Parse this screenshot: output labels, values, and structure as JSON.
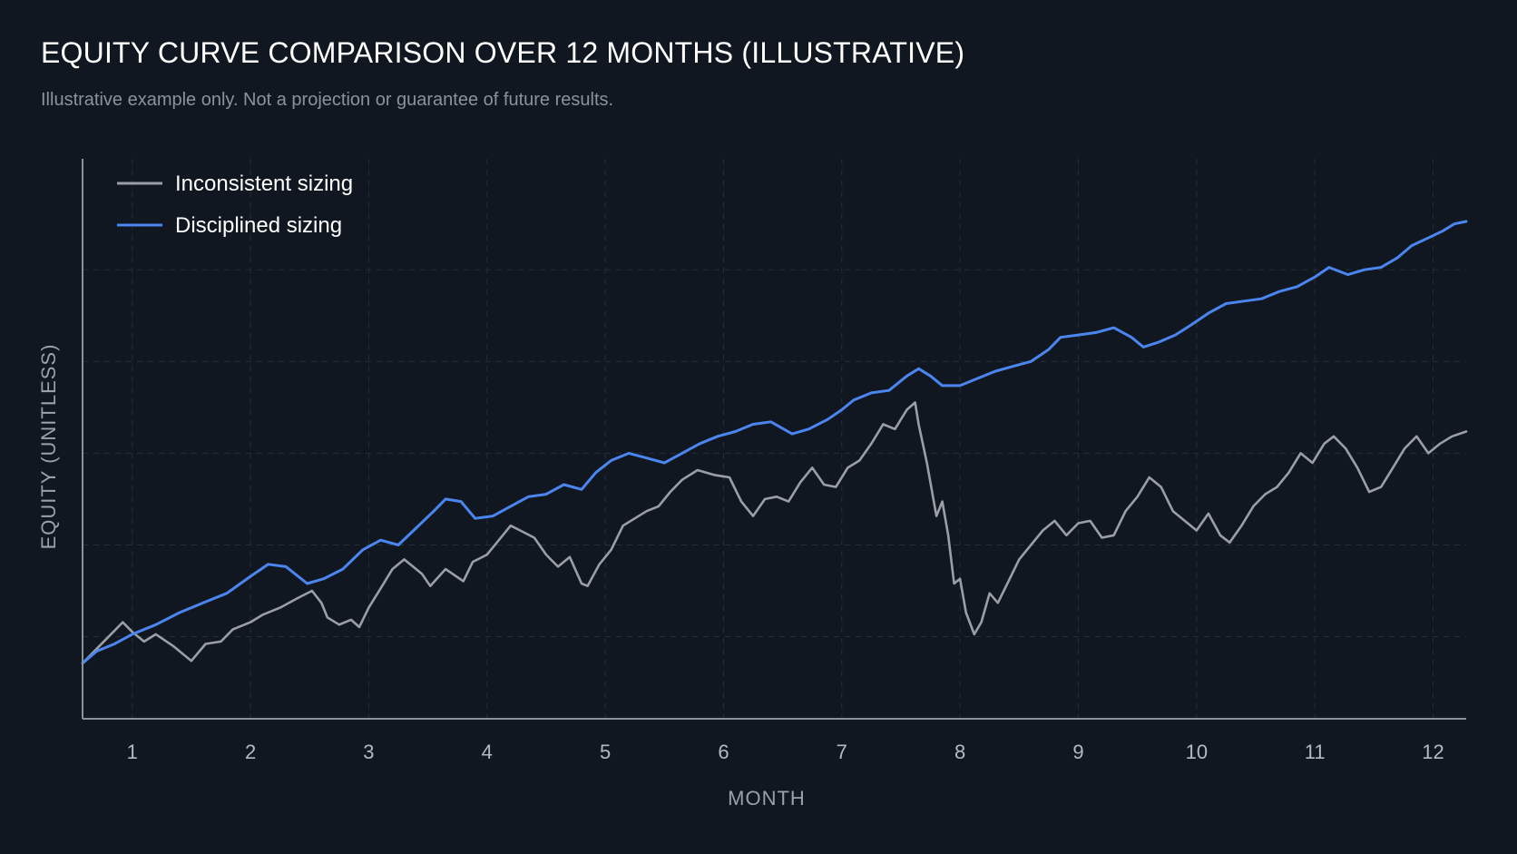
{
  "title": "EQUITY CURVE COMPARISON OVER 12 MONTHS (ILLUSTRATIVE)",
  "subtitle": "Illustrative example only. Not a projection or guarantee of future results.",
  "chart_data": {
    "type": "line",
    "xlabel": "MONTH",
    "ylabel": "EQUITY (UNITLESS)",
    "xticks": [
      1,
      2,
      3,
      4,
      5,
      6,
      7,
      8,
      9,
      10,
      11,
      12
    ],
    "xlim": [
      0.58,
      12.28
    ],
    "ylim": [
      0,
      100
    ],
    "grid": true,
    "legend_position": "top-left",
    "colors": {
      "background": "#111720",
      "grid": "#262d38",
      "axis": "#8a929c"
    },
    "series": [
      {
        "name": "Inconsistent sizing",
        "color": "#9a9fa6",
        "points": [
          [
            0.58,
            11.5
          ],
          [
            0.72,
            15
          ],
          [
            0.8,
            17
          ],
          [
            0.92,
            20
          ],
          [
            1.0,
            18
          ],
          [
            1.1,
            16
          ],
          [
            1.2,
            17.5
          ],
          [
            1.35,
            15
          ],
          [
            1.5,
            12
          ],
          [
            1.62,
            15.5
          ],
          [
            1.75,
            16
          ],
          [
            1.85,
            18.5
          ],
          [
            2.0,
            20
          ],
          [
            2.1,
            21.5
          ],
          [
            2.25,
            23
          ],
          [
            2.4,
            25
          ],
          [
            2.52,
            26.5
          ],
          [
            2.6,
            24
          ],
          [
            2.65,
            21
          ],
          [
            2.75,
            19.5
          ],
          [
            2.85,
            20.5
          ],
          [
            2.92,
            19
          ],
          [
            3.0,
            23
          ],
          [
            3.1,
            27
          ],
          [
            3.2,
            31
          ],
          [
            3.3,
            33
          ],
          [
            3.45,
            30
          ],
          [
            3.52,
            27.5
          ],
          [
            3.65,
            31
          ],
          [
            3.8,
            28.5
          ],
          [
            3.88,
            32.5
          ],
          [
            4.0,
            34
          ],
          [
            4.1,
            37
          ],
          [
            4.2,
            40
          ],
          [
            4.28,
            39
          ],
          [
            4.4,
            37.5
          ],
          [
            4.5,
            34
          ],
          [
            4.6,
            31.5
          ],
          [
            4.7,
            33.5
          ],
          [
            4.8,
            28
          ],
          [
            4.85,
            27.5
          ],
          [
            4.95,
            32
          ],
          [
            5.05,
            35
          ],
          [
            5.15,
            40
          ],
          [
            5.25,
            41.5
          ],
          [
            5.35,
            43
          ],
          [
            5.45,
            44
          ],
          [
            5.55,
            47
          ],
          [
            5.65,
            49.5
          ],
          [
            5.78,
            51.5
          ],
          [
            5.92,
            50.5
          ],
          [
            6.05,
            50
          ],
          [
            6.15,
            45
          ],
          [
            6.25,
            42
          ],
          [
            6.35,
            45.5
          ],
          [
            6.45,
            46
          ],
          [
            6.55,
            45
          ],
          [
            6.65,
            49
          ],
          [
            6.75,
            52
          ],
          [
            6.85,
            48.5
          ],
          [
            6.95,
            48
          ],
          [
            7.05,
            52
          ],
          [
            7.15,
            53.5
          ],
          [
            7.25,
            57
          ],
          [
            7.35,
            61
          ],
          [
            7.45,
            60
          ],
          [
            7.55,
            64
          ],
          [
            7.62,
            65.5
          ],
          [
            7.65,
            61
          ],
          [
            7.72,
            53
          ],
          [
            7.8,
            42
          ],
          [
            7.85,
            45
          ],
          [
            7.9,
            38
          ],
          [
            7.95,
            28
          ],
          [
            8.0,
            29
          ],
          [
            8.05,
            22
          ],
          [
            8.12,
            17.5
          ],
          [
            8.18,
            20
          ],
          [
            8.25,
            26
          ],
          [
            8.32,
            24
          ],
          [
            8.4,
            28
          ],
          [
            8.5,
            33
          ],
          [
            8.6,
            36
          ],
          [
            8.7,
            39
          ],
          [
            8.8,
            41
          ],
          [
            8.9,
            38
          ],
          [
            9.0,
            40.5
          ],
          [
            9.1,
            41
          ],
          [
            9.2,
            37.5
          ],
          [
            9.3,
            38
          ],
          [
            9.4,
            43
          ],
          [
            9.5,
            46
          ],
          [
            9.6,
            50
          ],
          [
            9.7,
            48
          ],
          [
            9.8,
            43
          ],
          [
            9.9,
            41
          ],
          [
            10.0,
            39
          ],
          [
            10.1,
            42.5
          ],
          [
            10.2,
            38
          ],
          [
            10.28,
            36.5
          ],
          [
            10.38,
            40
          ],
          [
            10.48,
            44
          ],
          [
            10.58,
            46.5
          ],
          [
            10.68,
            48
          ],
          [
            10.78,
            51
          ],
          [
            10.88,
            55
          ],
          [
            10.98,
            53
          ],
          [
            11.08,
            57
          ],
          [
            11.16,
            58.5
          ],
          [
            11.26,
            56
          ],
          [
            11.36,
            52
          ],
          [
            11.46,
            47
          ],
          [
            11.56,
            48
          ],
          [
            11.66,
            52
          ],
          [
            11.76,
            56
          ],
          [
            11.86,
            58.5
          ],
          [
            11.96,
            55
          ],
          [
            12.06,
            57
          ],
          [
            12.16,
            58.5
          ],
          [
            12.28,
            59.5
          ]
        ]
      },
      {
        "name": "Disciplined sizing",
        "color": "#4b86f0",
        "points": [
          [
            0.58,
            11.5
          ],
          [
            0.7,
            14
          ],
          [
            0.85,
            15.5
          ],
          [
            1.0,
            17.5
          ],
          [
            1.2,
            19.5
          ],
          [
            1.4,
            22
          ],
          [
            1.6,
            24
          ],
          [
            1.8,
            26
          ],
          [
            2.0,
            29.5
          ],
          [
            2.15,
            32
          ],
          [
            2.3,
            31.5
          ],
          [
            2.48,
            28
          ],
          [
            2.62,
            29
          ],
          [
            2.78,
            31
          ],
          [
            2.95,
            35
          ],
          [
            3.1,
            37
          ],
          [
            3.25,
            36
          ],
          [
            3.4,
            39.5
          ],
          [
            3.55,
            43
          ],
          [
            3.65,
            45.5
          ],
          [
            3.78,
            45
          ],
          [
            3.9,
            41.5
          ],
          [
            4.05,
            42
          ],
          [
            4.2,
            44
          ],
          [
            4.35,
            46
          ],
          [
            4.5,
            46.5
          ],
          [
            4.65,
            48.5
          ],
          [
            4.8,
            47.5
          ],
          [
            4.92,
            51
          ],
          [
            5.05,
            53.5
          ],
          [
            5.2,
            55
          ],
          [
            5.35,
            54
          ],
          [
            5.5,
            53
          ],
          [
            5.65,
            55
          ],
          [
            5.8,
            57
          ],
          [
            5.95,
            58.5
          ],
          [
            6.1,
            59.5
          ],
          [
            6.25,
            61
          ],
          [
            6.4,
            61.5
          ],
          [
            6.58,
            59
          ],
          [
            6.72,
            60
          ],
          [
            6.88,
            62
          ],
          [
            7.0,
            64
          ],
          [
            7.1,
            66
          ],
          [
            7.25,
            67.5
          ],
          [
            7.4,
            68
          ],
          [
            7.55,
            71
          ],
          [
            7.65,
            72.5
          ],
          [
            7.75,
            71
          ],
          [
            7.85,
            69
          ],
          [
            8.0,
            69
          ],
          [
            8.15,
            70.5
          ],
          [
            8.3,
            72
          ],
          [
            8.45,
            73
          ],
          [
            8.6,
            74
          ],
          [
            8.75,
            76.5
          ],
          [
            8.85,
            79
          ],
          [
            9.0,
            79.5
          ],
          [
            9.15,
            80
          ],
          [
            9.3,
            81
          ],
          [
            9.45,
            79
          ],
          [
            9.55,
            77
          ],
          [
            9.68,
            78
          ],
          [
            9.82,
            79.5
          ],
          [
            9.95,
            81.5
          ],
          [
            10.1,
            84
          ],
          [
            10.25,
            86
          ],
          [
            10.4,
            86.5
          ],
          [
            10.55,
            87
          ],
          [
            10.7,
            88.5
          ],
          [
            10.85,
            89.5
          ],
          [
            11.0,
            91.5
          ],
          [
            11.12,
            93.5
          ],
          [
            11.28,
            92
          ],
          [
            11.42,
            93
          ],
          [
            11.56,
            93.5
          ],
          [
            11.7,
            95.5
          ],
          [
            11.82,
            98
          ],
          [
            11.95,
            99.5
          ],
          [
            12.08,
            101
          ],
          [
            12.18,
            102.5
          ],
          [
            12.28,
            103
          ]
        ]
      }
    ]
  }
}
